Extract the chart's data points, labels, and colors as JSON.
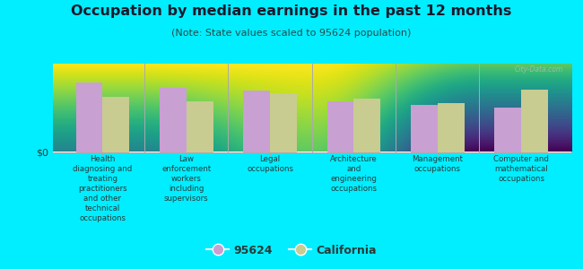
{
  "title": "Occupation by median earnings in the past 12 months",
  "subtitle": "(Note: State values scaled to 95624 population)",
  "categories": [
    "Health\ndiagnosing and\ntreating\npractitioners\nand other\ntechnical\noccupations",
    "Law\nenforcement\nworkers\nincluding\nsupervisors",
    "Legal\noccupations",
    "Architecture\nand\nengineering\noccupations",
    "Management\noccupations",
    "Computer and\nmathematical\noccupations"
  ],
  "values_95624": [
    0.82,
    0.76,
    0.73,
    0.6,
    0.56,
    0.52
  ],
  "values_california": [
    0.65,
    0.6,
    0.7,
    0.63,
    0.58,
    0.74
  ],
  "color_95624": "#c8a0d2",
  "color_california": "#c8cc90",
  "background_outer": "#00eeff",
  "background_inner_top": "#f5f5e8",
  "background_inner_bottom": "#d8e8c0",
  "ylabel": "$0",
  "legend_95624": "95624",
  "legend_california": "California",
  "watermark": "City-Data.com",
  "bar_width": 0.32,
  "title_color": "#1a1a2e",
  "subtitle_color": "#2a4a4a",
  "label_color": "#2a3a3a"
}
